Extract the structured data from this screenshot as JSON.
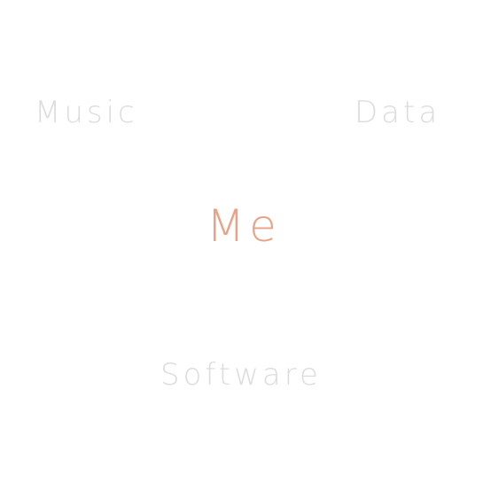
{
  "center": {
    "label": "Me",
    "color": "#e8a285"
  },
  "satellites": {
    "color": "#dcdcdc",
    "items": [
      {
        "label": "Music"
      },
      {
        "label": "Data"
      },
      {
        "label": "Software"
      }
    ]
  }
}
